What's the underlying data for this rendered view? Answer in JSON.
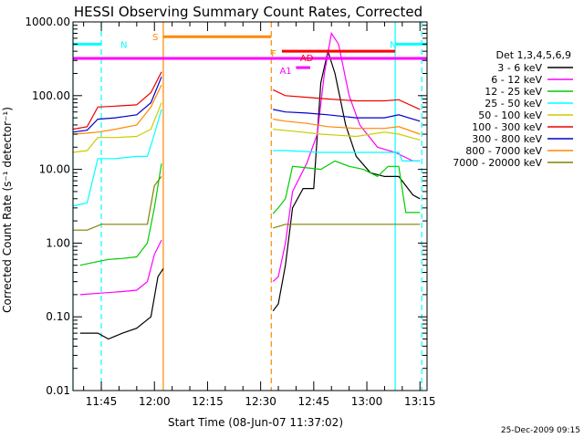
{
  "chart_data": {
    "type": "line",
    "title": "HESSI Observing Summary Count Rates, Corrected",
    "xlabel": "Start Time (08-Jun-07 11:37:02)",
    "ylabel": "Corrected Count Rate (s⁻¹ detector⁻¹)",
    "yscale": "log",
    "ylim": [
      0.01,
      1000
    ],
    "xlim": [
      0,
      100
    ],
    "xunits": "minutes since 11:37:02",
    "ytick_values": [
      0.01,
      0.1,
      1,
      10,
      100,
      1000
    ],
    "ytick_labels": [
      "0.01",
      "0.10",
      "1.00",
      "10.00",
      "100.00",
      "1000.00"
    ],
    "xtick_values": [
      8,
      23,
      38,
      53,
      68,
      83,
      98
    ],
    "xtick_labels": [
      "11:45",
      "12:00",
      "12:15",
      "12:30",
      "12:45",
      "13:00",
      "13:15"
    ],
    "detectors_label": "Det 1,3,4,5,6,9",
    "footer_date": "25-Dec-2009 09:15",
    "series": [
      {
        "name": "3 - 6 keV",
        "color": "#000000",
        "segments": [
          [
            [
              2,
              0.06
            ],
            [
              7,
              0.06
            ],
            [
              10,
              0.05
            ],
            [
              14,
              0.06
            ],
            [
              18,
              0.07
            ],
            [
              22,
              0.1
            ],
            [
              24,
              0.35
            ],
            [
              25.5,
              0.45
            ]
          ],
          [
            [
              56.5,
              0.12
            ],
            [
              58,
              0.15
            ],
            [
              60,
              0.5
            ],
            [
              62,
              3
            ],
            [
              65,
              5.5
            ],
            [
              68,
              5.5
            ],
            [
              70,
              150
            ],
            [
              72,
              400
            ],
            [
              74,
              200
            ],
            [
              77,
              40
            ],
            [
              80,
              15
            ],
            [
              84,
              9
            ],
            [
              88,
              8
            ],
            [
              92,
              8
            ],
            [
              96,
              4.5
            ],
            [
              98,
              4
            ]
          ]
        ]
      },
      {
        "name": "6 - 12 keV",
        "color": "#ff00ff",
        "segments": [
          [
            [
              2,
              0.2
            ],
            [
              8,
              0.21
            ],
            [
              14,
              0.22
            ],
            [
              18,
              0.23
            ],
            [
              21,
              0.3
            ],
            [
              23,
              0.7
            ],
            [
              25,
              1.1
            ]
          ],
          [
            [
              56.5,
              0.3
            ],
            [
              58,
              0.35
            ],
            [
              60,
              1.0
            ],
            [
              62,
              5
            ],
            [
              66,
              12
            ],
            [
              69,
              30
            ],
            [
              71,
              200
            ],
            [
              73,
              700
            ],
            [
              75,
              500
            ],
            [
              78,
              100
            ],
            [
              81,
              40
            ],
            [
              86,
              20
            ],
            [
              91,
              17
            ],
            [
              96,
              13
            ],
            [
              98,
              13
            ]
          ]
        ]
      },
      {
        "name": "12 - 25 keV",
        "color": "#00cc00",
        "segments": [
          [
            [
              2,
              0.5
            ],
            [
              6,
              0.55
            ],
            [
              10,
              0.6
            ],
            [
              14,
              0.62
            ],
            [
              18,
              0.65
            ],
            [
              21,
              1.0
            ],
            [
              23,
              3
            ],
            [
              25,
              12
            ]
          ],
          [
            [
              56.5,
              2.5
            ],
            [
              58,
              3.0
            ],
            [
              60,
              4
            ],
            [
              62,
              11
            ],
            [
              66,
              10.5
            ],
            [
              70,
              10
            ],
            [
              74,
              13
            ],
            [
              78,
              11
            ],
            [
              82,
              10
            ],
            [
              86,
              8
            ],
            [
              89,
              11
            ],
            [
              92,
              11
            ],
            [
              94,
              2.6
            ],
            [
              98,
              2.6
            ]
          ]
        ]
      },
      {
        "name": "25 - 50 keV",
        "color": "#00ffff",
        "segments": [
          [
            [
              0,
              3.2
            ],
            [
              4,
              3.5
            ],
            [
              7,
              14
            ],
            [
              12,
              14
            ],
            [
              18,
              15
            ],
            [
              21,
              15
            ],
            [
              23,
              30
            ],
            [
              25,
              65
            ]
          ],
          [
            [
              56.5,
              18
            ],
            [
              60,
              18
            ],
            [
              70,
              17
            ],
            [
              80,
              17
            ],
            [
              88,
              17
            ],
            [
              92,
              17
            ],
            [
              93,
              13
            ],
            [
              98,
              13
            ]
          ]
        ]
      },
      {
        "name": "50 - 100 keV",
        "color": "#cccc00",
        "segments": [
          [
            [
              0,
              17
            ],
            [
              4,
              18
            ],
            [
              7,
              27
            ],
            [
              12,
              27
            ],
            [
              18,
              28
            ],
            [
              22,
              35
            ],
            [
              25,
              80
            ]
          ],
          [
            [
              56.5,
              35
            ],
            [
              62,
              33
            ],
            [
              70,
              30
            ],
            [
              80,
              28
            ],
            [
              88,
              32
            ],
            [
              92,
              30
            ],
            [
              98,
              25
            ]
          ]
        ]
      },
      {
        "name": "100 - 300 keV",
        "color": "#ee0000",
        "segments": [
          [
            [
              0,
              35
            ],
            [
              4,
              38
            ],
            [
              7,
              70
            ],
            [
              12,
              72
            ],
            [
              18,
              75
            ],
            [
              22,
              110
            ],
            [
              25,
              210
            ]
          ],
          [
            [
              56.5,
              120
            ],
            [
              60,
              100
            ],
            [
              66,
              95
            ],
            [
              72,
              90
            ],
            [
              80,
              85
            ],
            [
              88,
              85
            ],
            [
              92,
              88
            ],
            [
              98,
              65
            ]
          ]
        ]
      },
      {
        "name": "300 - 800 keV",
        "color": "#0000cc",
        "segments": [
          [
            [
              0,
              32
            ],
            [
              4,
              34
            ],
            [
              7,
              48
            ],
            [
              12,
              50
            ],
            [
              18,
              55
            ],
            [
              22,
              80
            ],
            [
              25,
              180
            ]
          ],
          [
            [
              56.5,
              65
            ],
            [
              60,
              60
            ],
            [
              66,
              58
            ],
            [
              72,
              55
            ],
            [
              80,
              50
            ],
            [
              88,
              50
            ],
            [
              92,
              55
            ],
            [
              98,
              45
            ]
          ]
        ]
      },
      {
        "name": "800 - 7000 keV",
        "color": "#ff8800",
        "segments": [
          [
            [
              0,
              30
            ],
            [
              4,
              31
            ],
            [
              7,
              32
            ],
            [
              12,
              35
            ],
            [
              18,
              40
            ],
            [
              22,
              70
            ],
            [
              25,
              140
            ]
          ],
          [
            [
              56.5,
              48
            ],
            [
              60,
              45
            ],
            [
              66,
              42
            ],
            [
              72,
              38
            ],
            [
              80,
              36
            ],
            [
              88,
              36
            ],
            [
              92,
              38
            ],
            [
              98,
              30
            ]
          ]
        ]
      },
      {
        "name": "7000 - 20000 keV",
        "color": "#808000",
        "segments": [
          [
            [
              0,
              1.5
            ],
            [
              4,
              1.5
            ],
            [
              8,
              1.8
            ],
            [
              12,
              1.8
            ],
            [
              18,
              1.8
            ],
            [
              21,
              1.8
            ],
            [
              23,
              6
            ],
            [
              25,
              8
            ]
          ],
          [
            [
              56.5,
              1.6
            ],
            [
              60,
              1.8
            ],
            [
              66,
              1.8
            ],
            [
              72,
              1.8
            ],
            [
              80,
              1.8
            ],
            [
              88,
              1.8
            ],
            [
              92,
              1.8
            ],
            [
              98,
              1.8
            ]
          ]
        ]
      }
    ],
    "flags": [
      {
        "label": "N",
        "color": "#00ffff",
        "y": 500,
        "x_start": 0,
        "x_end": 8
      },
      {
        "label": "N",
        "color": "#00ffff",
        "y": 500,
        "x_start": 91,
        "x_end": 100
      },
      {
        "label": "S",
        "color": "#ff8800",
        "y": 630,
        "x_start": 25.5,
        "x_end": 56
      },
      {
        "label": "",
        "color": "#ff00ff",
        "y": 320,
        "x_start": 0,
        "x_end": 100
      },
      {
        "label": "AD",
        "color": "#ff0000",
        "y": 400,
        "x_start": 59,
        "x_end": 91
      },
      {
        "label": "A1",
        "color": "#ff00ff",
        "y": 240,
        "x_start": 63,
        "x_end": 67
      },
      {
        "label": "F",
        "color": "#ff8800",
        "y": 0,
        "x_start": 56,
        "x_end": 56
      }
    ],
    "vertical_lines": [
      {
        "x": 0,
        "color": "#00ffff",
        "style": "solid"
      },
      {
        "x": 8,
        "color": "#00ffff",
        "style": "dashed"
      },
      {
        "x": 25.5,
        "color": "#ff8800",
        "style": "solid"
      },
      {
        "x": 56,
        "color": "#ff8800",
        "style": "dashed"
      },
      {
        "x": 91,
        "color": "#00ffff",
        "style": "solid"
      },
      {
        "x": 98.5,
        "color": "#00ffff",
        "style": "dashed"
      }
    ]
  }
}
